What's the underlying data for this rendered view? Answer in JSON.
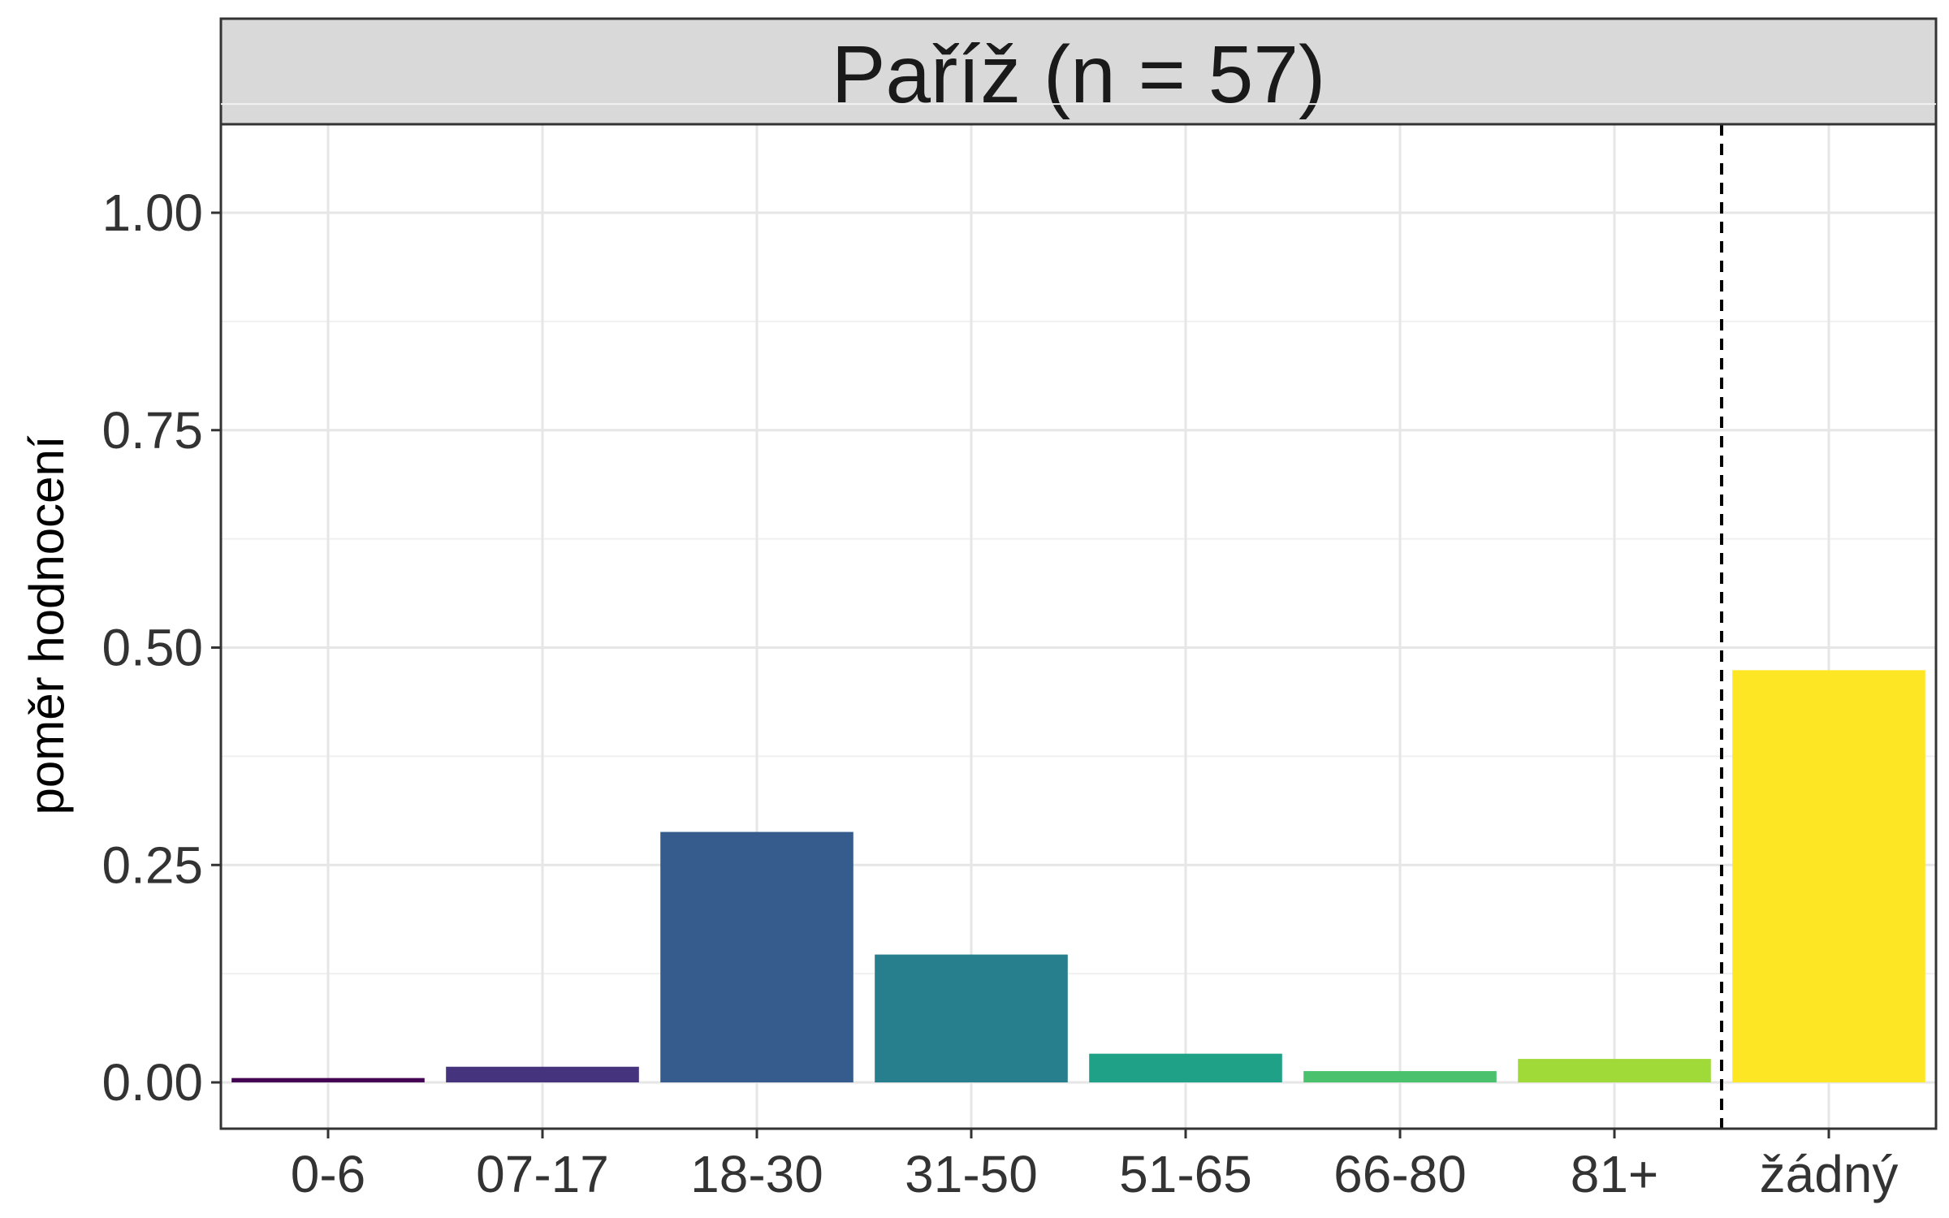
{
  "chart_data": {
    "type": "bar",
    "title": "",
    "facet_label": "Paříž (n = 57)",
    "xlabel": "",
    "ylabel": "poměr hodnocení",
    "categories": [
      "0-6",
      "07-17",
      "18-30",
      "31-50",
      "51-65",
      "66-80",
      "81+",
      "žádný"
    ],
    "values": [
      0.005,
      0.018,
      0.288,
      0.147,
      0.033,
      0.013,
      0.027,
      0.474
    ],
    "colors": [
      "#440154",
      "#46337e",
      "#365c8d",
      "#277f8e",
      "#1fa187",
      "#4ac16d",
      "#a0da39",
      "#fde725"
    ],
    "ylim": [
      0,
      1
    ],
    "y_ticks": [
      "0.00",
      "0.25",
      "0.50",
      "0.75",
      "1.00"
    ],
    "y_tick_values": [
      0,
      0.25,
      0.5,
      0.75,
      1.0
    ],
    "reference_line_between": [
      "81+",
      "žádný"
    ],
    "grid": true,
    "legend": "none"
  }
}
